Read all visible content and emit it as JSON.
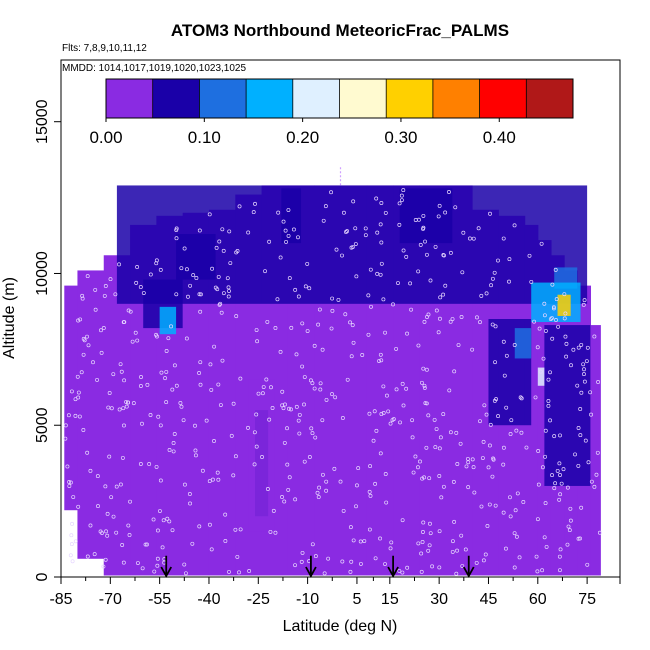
{
  "chart_data": {
    "type": "heatmap",
    "title": "ATOM3 Northbound MeteoricFrac_PALMS",
    "subtitle_flights": "Flts: 7,8,9,10,11,12",
    "subtitle_dates": "MMDD: 1014,1017,1019,1020,1023,1025",
    "xlabel": "Latitude (deg N)",
    "ylabel": "Altitude (m)",
    "xlim": [
      -85,
      85
    ],
    "ylim": [
      0,
      17000
    ],
    "x_ticks": [
      -85,
      -70,
      -55,
      -40,
      -25,
      -10,
      5,
      15,
      30,
      45,
      60,
      75
    ],
    "y_ticks": [
      0,
      5000,
      10000,
      15000
    ],
    "colorbar": {
      "range": [
        0,
        0.475
      ],
      "tick_values": [
        0.0,
        0.1,
        0.2,
        0.3,
        0.4
      ],
      "tick_labels": [
        "0.00",
        "0.10",
        "0.20",
        "0.30",
        "0.40"
      ],
      "colors": [
        "#8a2be2",
        "#1a00a8",
        "#1e6fe0",
        "#00b0ff",
        "#dff0ff",
        "#fffad0",
        "#ffd000",
        "#ff8000",
        "#ff0000",
        "#b01818"
      ]
    },
    "background_value": 0.02,
    "coverage": {
      "lat_edges": [
        -84,
        -80,
        -72,
        -64,
        -56,
        -48,
        -40,
        -32,
        -24,
        -16,
        -8,
        0,
        8,
        16,
        24,
        32,
        40,
        48,
        56,
        60,
        64,
        68,
        72,
        76,
        79
      ],
      "top_altitude": [
        9600,
        10100,
        10600,
        11600,
        11900,
        12000,
        12100,
        12600,
        12900,
        12900,
        12900,
        12900,
        12900,
        12900,
        12900,
        12900,
        12100,
        11900,
        11600,
        11100,
        10600,
        10100,
        9600,
        8300
      ],
      "bottom_altitude": [
        2200,
        600,
        50,
        50,
        50,
        50,
        50,
        50,
        50,
        50,
        50,
        50,
        50,
        50,
        50,
        50,
        50,
        50,
        50,
        50,
        50,
        50,
        50,
        50
      ]
    },
    "features": [
      {
        "lat": [
          -68,
          75
        ],
        "alt": [
          9000,
          12900
        ],
        "value": 0.05
      },
      {
        "lat": [
          -50,
          -38
        ],
        "alt": [
          9800,
          11300
        ],
        "value": 0.07
      },
      {
        "lat": [
          -60,
          -48
        ],
        "alt": [
          8200,
          9800
        ],
        "value": 0.06
      },
      {
        "lat": [
          -55,
          -50
        ],
        "alt": [
          8000,
          8900
        ],
        "value": 0.18
      },
      {
        "lat": [
          -26,
          -22
        ],
        "alt": [
          2000,
          5500
        ],
        "value": 0.06
      },
      {
        "lat": [
          -28,
          -20
        ],
        "alt": [
          1500,
          6500
        ],
        "value": 0.04
      },
      {
        "lat": [
          -18,
          -12
        ],
        "alt": [
          11000,
          12800
        ],
        "value": 0.07
      },
      {
        "lat": [
          18,
          34
        ],
        "alt": [
          11000,
          12800
        ],
        "value": 0.06
      },
      {
        "lat": [
          45,
          58
        ],
        "alt": [
          5000,
          8500
        ],
        "value": 0.07
      },
      {
        "lat": [
          62,
          76
        ],
        "alt": [
          3000,
          8300
        ],
        "value": 0.08
      },
      {
        "lat": [
          65,
          72
        ],
        "alt": [
          9500,
          10200
        ],
        "value": 0.14
      },
      {
        "lat": [
          58,
          73
        ],
        "alt": [
          8400,
          9700
        ],
        "value": 0.17
      },
      {
        "lat": [
          66,
          70
        ],
        "alt": [
          8600,
          9300
        ],
        "value": 0.29
      },
      {
        "lat": [
          60,
          62
        ],
        "alt": [
          6300,
          6900
        ],
        "value": 0.22
      },
      {
        "lat": [
          53,
          58
        ],
        "alt": [
          7200,
          8200
        ],
        "value": 0.12
      }
    ],
    "marker_latitudes": [
      -53,
      -9,
      16,
      39
    ],
    "marker_top_altitude": 700
  }
}
